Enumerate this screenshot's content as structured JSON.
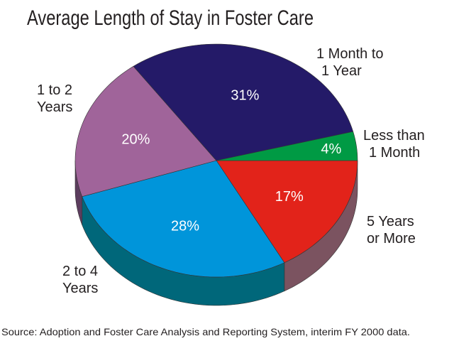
{
  "chart_data": {
    "type": "pie",
    "style": "3d",
    "title": "Average Length of Stay in Foster Care",
    "source": "Source: Adoption and Foster Care Analysis and Reporting System, interim FY 2000 data.",
    "start_direction": "right (3 o'clock), clockwise",
    "slices": [
      {
        "label_lines": [
          "5 Years",
          "or More"
        ],
        "value": 17,
        "value_label": "17%",
        "color": "#e2231a",
        "side_color": "#7b5360"
      },
      {
        "label_lines": [
          "2 to 4",
          "Years"
        ],
        "value": 28,
        "value_label": "28%",
        "color": "#0095da",
        "side_color": "#00677a"
      },
      {
        "label_lines": [
          "1 to 2",
          "Years"
        ],
        "value": 20,
        "value_label": "20%",
        "color": "#a0649a",
        "side_color": "#5c3d5e"
      },
      {
        "label_lines": [
          "1 Month to",
          "1 Year"
        ],
        "value": 31,
        "value_label": "31%",
        "color": "#241a68",
        "side_color": "#17104a"
      },
      {
        "label_lines": [
          "Less than",
          "1 Month"
        ],
        "value": 4,
        "value_label": "4%",
        "color": "#009a44",
        "side_color": "#005e2a"
      }
    ]
  }
}
